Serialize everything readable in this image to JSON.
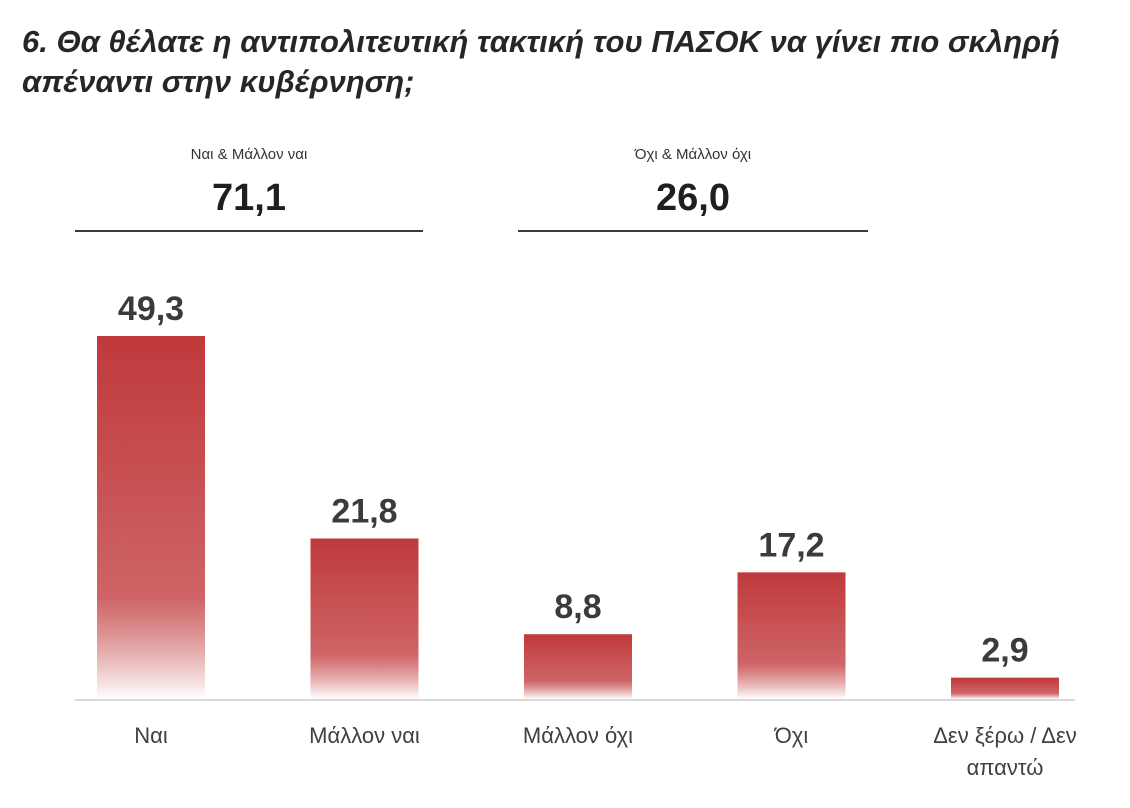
{
  "title": "6. Θα θέλατε η αντιπολιτευτική τακτική του ΠΑΣΟΚ να γίνει πιο σκληρή απέναντι στην κυβέρνηση;",
  "summaries": [
    {
      "label": "Ναι & Μάλλον ναι",
      "value": "71,1"
    },
    {
      "label": "Όχι & Μάλλον όχι",
      "value": "26,0"
    }
  ],
  "colors": {
    "bar_top": "#c0393b",
    "bar_bottom": "#ffffff",
    "axis": "#d9d9d9",
    "value_text": "#3b3b3b",
    "category_text": "#404040"
  },
  "chart_data": {
    "type": "bar",
    "title": "",
    "xlabel": "",
    "ylabel": "",
    "categories": [
      "Ναι",
      "Μάλλον ναι",
      "Μάλλον όχι",
      "Όχι",
      "Δεν ξέρω / Δεν απαντώ"
    ],
    "values": [
      49.3,
      21.8,
      8.8,
      17.2,
      2.9
    ],
    "value_labels": [
      "49,3",
      "21,8",
      "8,8",
      "17,2",
      "2,9"
    ],
    "ylim": [
      0,
      49.3
    ],
    "grid": false,
    "legend": "none"
  }
}
